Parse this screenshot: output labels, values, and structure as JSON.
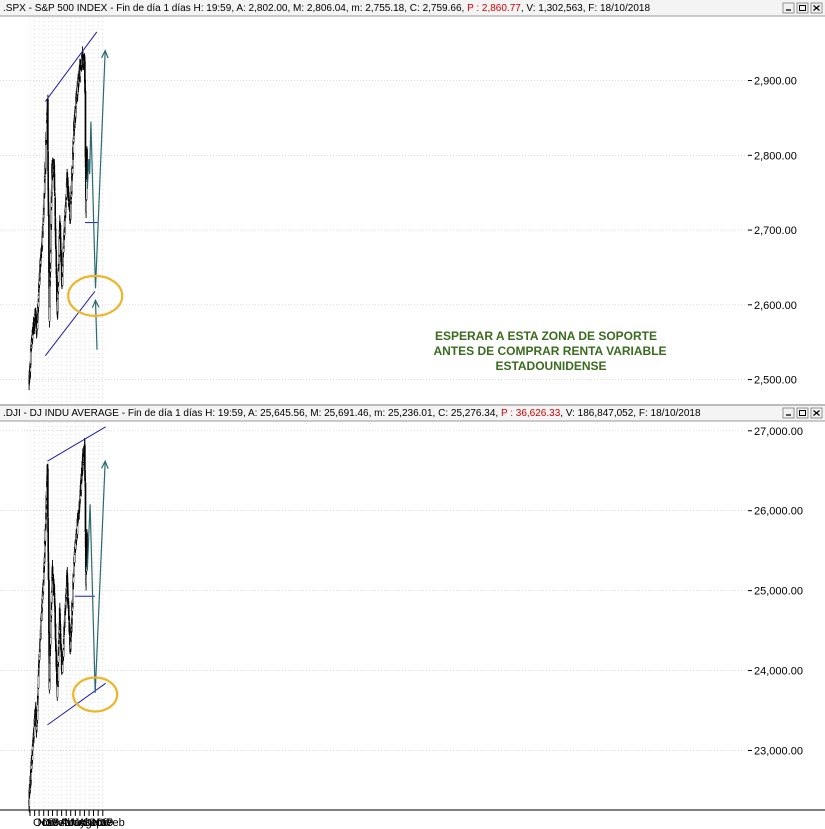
{
  "colors": {
    "candles": "#000000",
    "channel": "#1c1cb4",
    "projection": "#2a6a72",
    "highlight": "#f0b428",
    "annotation": "#3a6b1e",
    "header_red": "#d40000",
    "grid": "#c8c8c8"
  },
  "window_buttons": [
    "minimize-icon",
    "maximize-icon",
    "close-icon"
  ],
  "chart_data": [
    {
      "type": "candlestick",
      "header": {
        "symbol": ".SPX",
        "name": "S&P 500 INDEX",
        "period": "Fin de día 1 días",
        "time": "H: 19:59",
        "A": "A: 2,802.00",
        "M": "M: 2,806.04",
        "m": "m: 2,755.18",
        "C": "C: 2,759.66",
        "P": "P : 2,860.77",
        "V": "V: 1,302,563",
        "F": "F: 18/10/2018"
      },
      "ylim": [
        2470,
        2985
      ],
      "y_ticks": [
        "2,500.00",
        "2,600.00",
        "2,700.00",
        "2,800.00",
        "2,900.00"
      ],
      "y_tick_values": [
        2500,
        2600,
        2700,
        2800,
        2900
      ],
      "anchors": [
        [
          "2017-09-25",
          2496
        ],
        [
          "2017-10-13",
          2553
        ],
        [
          "2017-11-07",
          2590
        ],
        [
          "2017-11-15",
          2565
        ],
        [
          "2017-12-04",
          2640
        ],
        [
          "2017-12-20",
          2680
        ],
        [
          "2018-01-05",
          2745
        ],
        [
          "2018-01-26",
          2872
        ],
        [
          "2018-02-08",
          2582
        ],
        [
          "2018-02-26",
          2780
        ],
        [
          "2018-03-12",
          2784
        ],
        [
          "2018-04-02",
          2582
        ],
        [
          "2018-04-18",
          2708
        ],
        [
          "2018-05-03",
          2629
        ],
        [
          "2018-06-06",
          2772
        ],
        [
          "2018-06-28",
          2717
        ],
        [
          "2018-07-25",
          2846
        ],
        [
          "2018-08-29",
          2914
        ],
        [
          "2018-09-20",
          2930
        ],
        [
          "2018-10-03",
          2925
        ],
        [
          "2018-10-11",
          2728
        ],
        [
          "2018-10-17",
          2809
        ],
        [
          "2018-10-18",
          2760
        ]
      ],
      "lines": {
        "channel_top": [
          [
            "2018-01-12",
            2872
          ],
          [
            "2018-12-23",
            2965
          ]
        ],
        "channel_bottom": [
          [
            "2018-01-12",
            2532
          ],
          [
            "2018-12-10",
            2618
          ]
        ],
        "support": [
          [
            "2018-10-05",
            2710
          ],
          [
            "2018-12-28",
            2710
          ]
        ]
      },
      "projection": [
        [
          "2018-10-20",
          2755
        ],
        [
          "2018-10-30",
          2795
        ],
        [
          "2018-11-05",
          2775
        ],
        [
          "2018-11-13",
          2845
        ],
        [
          "2018-12-14",
          2622
        ],
        [
          "2019-02-17",
          2940
        ]
      ],
      "projection_arrow2": [
        [
          "2018-12-24",
          2540
        ],
        [
          "2018-12-14",
          2606
        ]
      ],
      "highlight_zone": [
        "2018-12-12",
        2612
      ],
      "annotation": [
        "ESPERAR A ESTA ZONA DE SOPORTE",
        "ANTES DE COMPRAR RENTA VARIABLE",
        "ESTADOUNIDENSE"
      ]
    },
    {
      "type": "candlestick",
      "header": {
        "symbol": ".DJI",
        "name": "DJ INDU AVERAGE",
        "period": "Fin de día 1 días",
        "time": "H: 19:59",
        "A": "A: 25,645.56",
        "M": "M: 25,691.46",
        "m": "m: 25,236.01",
        "C": "C: 25,276.34",
        "P": "P : 36,626.33",
        "V": "V: 186,847,052",
        "F": "F: 18/10/2018"
      },
      "ylim": [
        22280,
        27110
      ],
      "y_ticks": [
        "23,000.00",
        "24,000.00",
        "25,000.00",
        "26,000.00",
        "27,000.00"
      ],
      "y_tick_values": [
        23000,
        24000,
        25000,
        26000,
        27000
      ],
      "anchors": [
        [
          "2017-09-25",
          22380
        ],
        [
          "2017-10-13",
          22880
        ],
        [
          "2017-11-07",
          23500
        ],
        [
          "2017-11-15",
          23280
        ],
        [
          "2017-12-04",
          24250
        ],
        [
          "2017-12-20",
          24780
        ],
        [
          "2018-01-05",
          25300
        ],
        [
          "2018-01-26",
          26600
        ],
        [
          "2018-02-08",
          23800
        ],
        [
          "2018-02-26",
          25250
        ],
        [
          "2018-03-12",
          25000
        ],
        [
          "2018-04-02",
          23700
        ],
        [
          "2018-04-18",
          24700
        ],
        [
          "2018-05-03",
          23950
        ],
        [
          "2018-06-06",
          25200
        ],
        [
          "2018-06-28",
          24250
        ],
        [
          "2018-07-25",
          25400
        ],
        [
          "2018-08-29",
          26100
        ],
        [
          "2018-09-20",
          26650
        ],
        [
          "2018-10-03",
          26800
        ],
        [
          "2018-10-11",
          25050
        ],
        [
          "2018-10-17",
          25700
        ],
        [
          "2018-10-18",
          25280
        ]
      ],
      "lines": {
        "channel_top": [
          [
            "2018-01-26",
            26620
          ],
          [
            "2019-02-20",
            27050
          ]
        ],
        "channel_bottom": [
          [
            "2018-01-26",
            23320
          ],
          [
            "2019-02-20",
            23840
          ]
        ],
        "support": [
          [
            "2018-07-28",
            24930
          ],
          [
            "2018-12-10",
            24930
          ]
        ]
      },
      "projection": [
        [
          "2018-10-20",
          25250
        ],
        [
          "2018-11-08",
          26080
        ],
        [
          "2018-12-12",
          23720
        ],
        [
          "2019-02-17",
          26620
        ]
      ],
      "highlight_zone": [
        "2018-12-12",
        23700
      ]
    }
  ],
  "x_axis": {
    "labels": [
      "Oct",
      "Nov",
      "Dic",
      "18",
      "Feb",
      "Mar",
      "Abr",
      "May",
      "Jun",
      "Jul",
      "Ago",
      "Sep",
      "Oct",
      "Nov",
      "Dic",
      "19",
      "Feb"
    ],
    "dates": [
      "2017-10-01",
      "2017-11-01",
      "2017-12-01",
      "2018-01-01",
      "2018-02-01",
      "2018-03-01",
      "2018-04-01",
      "2018-05-01",
      "2018-06-01",
      "2018-07-01",
      "2018-08-01",
      "2018-09-01",
      "2018-10-01",
      "2018-11-01",
      "2018-12-01",
      "2019-01-01",
      "2019-02-01"
    ]
  }
}
